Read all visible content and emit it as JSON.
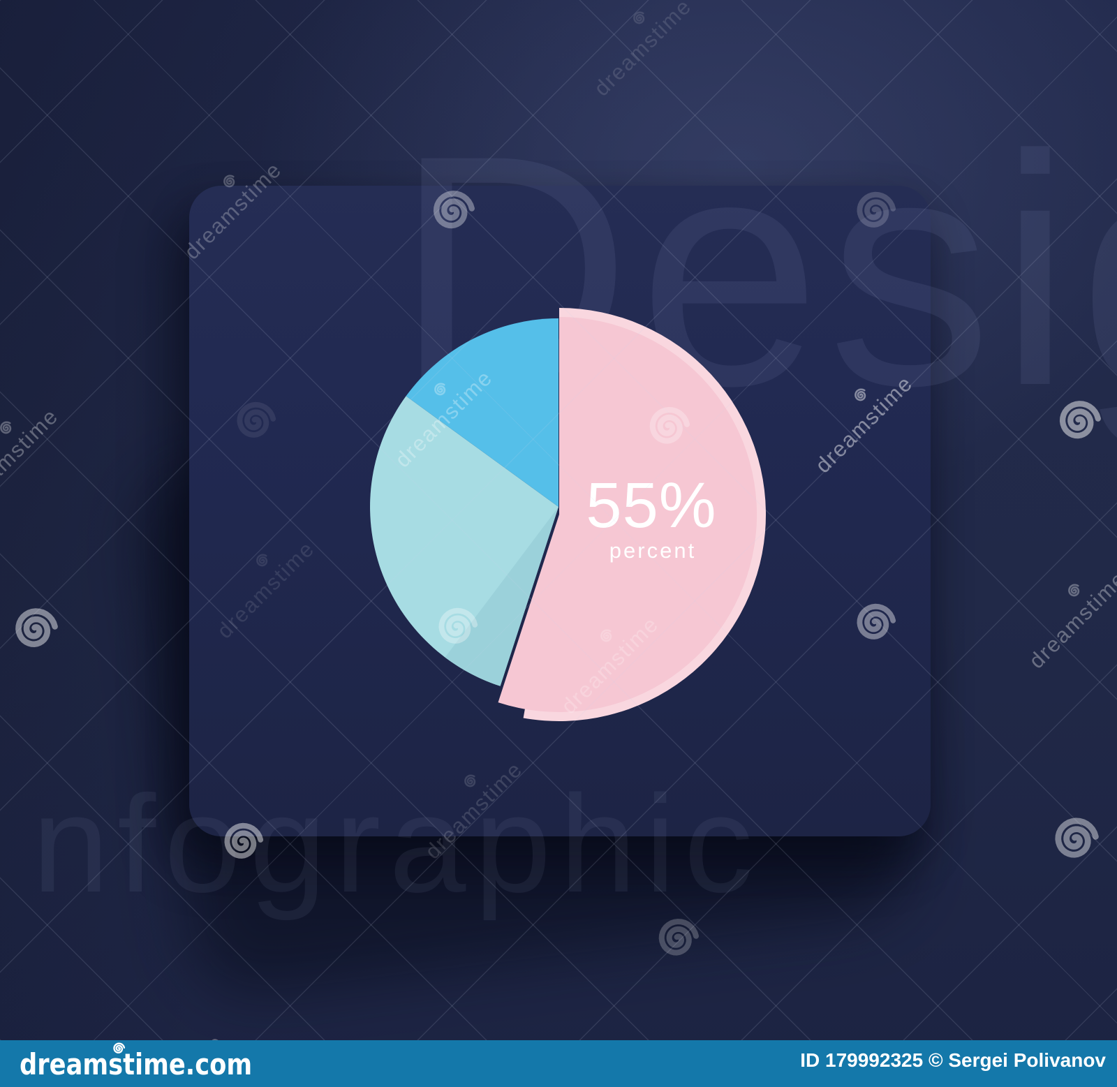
{
  "chart_data": {
    "type": "pie",
    "unit": "percent",
    "start_angle_deg": 0,
    "direction": "clockwise",
    "slices": [
      {
        "label": "55% percent",
        "value": 55,
        "color": "#f6c7d3",
        "rim_color": "#f9d7df"
      },
      {
        "label": "",
        "value": 30,
        "color": "#a7dce3",
        "shade_color": "#9bd1da"
      },
      {
        "label": "",
        "value": 15,
        "color": "#55bfe9"
      }
    ],
    "center_label": {
      "value": "55%",
      "caption": "percent"
    },
    "legend": "none",
    "background_card_color": "#212951"
  },
  "watermark": {
    "brand": "dreamstime",
    "giant_top": "Desig",
    "giant_bottom": "nfographic"
  },
  "bottom_bar": {
    "logo": "dreamstime.com",
    "credit": "ID 179992325 © Sergei Polivanov",
    "color": "#1478aa"
  },
  "colors": {
    "background": "#212948",
    "card": "#212951",
    "text": "#ffffff"
  }
}
